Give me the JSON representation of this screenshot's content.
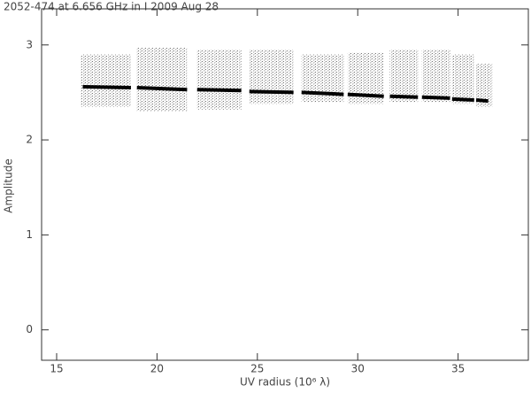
{
  "chart_data": {
    "type": "scatter",
    "title": "2052-474 at 6.656 GHz in I  2009 Aug 28",
    "x_label": "UV radius  (10⁶ λ)",
    "y_label": "Amplitude",
    "xlim": [
      14.25,
      38.5
    ],
    "ylim": [
      -0.32,
      3.38
    ],
    "xticks": [
      15,
      20,
      25,
      30,
      35
    ],
    "yticks": [
      0,
      1,
      2,
      3
    ],
    "clusters": {
      "x_start": [
        16.2,
        19.0,
        22.0,
        24.6,
        27.2,
        29.5,
        31.6,
        33.2,
        34.7,
        35.9
      ],
      "x_end": [
        18.7,
        21.5,
        24.2,
        26.8,
        29.3,
        31.3,
        33.0,
        34.6,
        35.8,
        36.7
      ],
      "y_low": [
        2.35,
        2.3,
        2.32,
        2.38,
        2.4,
        2.38,
        2.4,
        2.4,
        2.38,
        2.35
      ],
      "y_high": [
        2.9,
        2.97,
        2.95,
        2.95,
        2.9,
        2.92,
        2.95,
        2.95,
        2.9,
        2.8
      ],
      "color": "#555555"
    },
    "model": {
      "x": [
        16.3,
        18.7,
        null,
        19.0,
        21.5,
        null,
        22.0,
        24.2,
        null,
        24.6,
        26.8,
        null,
        27.2,
        29.3,
        null,
        29.5,
        31.3,
        null,
        31.6,
        33.0,
        null,
        33.2,
        34.6,
        null,
        34.7,
        35.8,
        null,
        35.9,
        36.5
      ],
      "values": [
        2.56,
        2.55,
        null,
        2.55,
        2.53,
        null,
        2.53,
        2.52,
        null,
        2.51,
        2.5,
        null,
        2.5,
        2.48,
        null,
        2.48,
        2.46,
        null,
        2.46,
        2.45,
        null,
        2.45,
        2.44,
        null,
        2.43,
        2.42,
        null,
        2.42,
        2.41
      ],
      "color": "#000000"
    }
  }
}
